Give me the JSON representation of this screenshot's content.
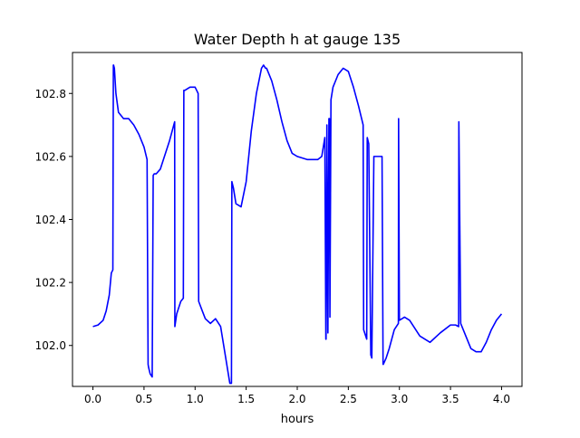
{
  "chart_data": {
    "type": "line",
    "title": "Water Depth h at gauge 135",
    "xlabel": "hours",
    "ylabel": "",
    "xlim": [
      -0.2,
      4.2
    ],
    "ylim": [
      101.87,
      102.93
    ],
    "x_ticks": [
      0.0,
      0.5,
      1.0,
      1.5,
      2.0,
      2.5,
      3.0,
      3.5,
      4.0
    ],
    "x_tick_labels": [
      "0.0",
      "0.5",
      "1.0",
      "1.5",
      "2.0",
      "2.5",
      "3.0",
      "3.5",
      "4.0"
    ],
    "y_ticks": [
      102.0,
      102.2,
      102.4,
      102.6,
      102.8
    ],
    "y_tick_labels": [
      "102.0",
      "102.2",
      "102.4",
      "102.6",
      "102.8"
    ],
    "grid": false,
    "legend": "none",
    "line_color": "#0000ff",
    "series": [
      {
        "x": [
          0.0,
          0.05,
          0.1,
          0.13,
          0.16,
          0.18,
          0.195,
          0.2,
          0.202,
          0.21,
          0.225,
          0.25,
          0.3,
          0.35,
          0.4,
          0.45,
          0.5,
          0.53,
          0.54,
          0.545,
          0.56,
          0.58,
          0.59,
          0.6,
          0.62,
          0.66,
          0.7,
          0.75,
          0.8,
          0.802,
          0.82,
          0.86,
          0.885,
          0.89,
          0.9,
          0.95,
          1.0,
          1.03,
          1.035,
          1.07,
          1.1,
          1.15,
          1.2,
          1.25,
          1.3,
          1.34,
          1.356,
          1.36,
          1.375,
          1.4,
          1.45,
          1.5,
          1.55,
          1.6,
          1.65,
          1.67,
          1.69,
          1.7,
          1.75,
          1.8,
          1.85,
          1.9,
          1.95,
          2.0,
          2.1,
          2.2,
          2.24,
          2.27,
          2.28,
          2.282,
          2.29,
          2.3,
          2.31,
          2.315,
          2.32,
          2.33,
          2.35,
          2.4,
          2.45,
          2.5,
          2.55,
          2.6,
          2.645,
          2.65,
          2.68,
          2.685,
          2.7,
          2.72,
          2.73,
          2.75,
          2.8,
          2.83,
          2.84,
          2.842,
          2.87,
          2.9,
          2.95,
          2.99,
          2.992,
          3.0,
          3.05,
          3.1,
          3.2,
          3.3,
          3.4,
          3.5,
          3.55,
          3.58,
          3.582,
          3.6,
          3.65,
          3.7,
          3.75,
          3.8,
          3.85,
          3.9,
          3.95,
          4.0
        ],
        "y": [
          102.06,
          102.065,
          102.08,
          102.11,
          102.16,
          102.23,
          102.24,
          102.89,
          102.89,
          102.88,
          102.8,
          102.74,
          102.72,
          102.72,
          102.7,
          102.67,
          102.63,
          102.59,
          101.94,
          101.93,
          101.91,
          101.9,
          102.54,
          102.545,
          102.545,
          102.56,
          102.6,
          102.65,
          102.71,
          102.06,
          102.1,
          102.14,
          102.15,
          102.81,
          102.81,
          102.82,
          102.82,
          102.8,
          102.14,
          102.11,
          102.085,
          102.07,
          102.085,
          102.06,
          101.96,
          101.88,
          101.88,
          102.52,
          102.5,
          102.45,
          102.44,
          102.52,
          102.68,
          102.8,
          102.88,
          102.89,
          102.88,
          102.88,
          102.84,
          102.78,
          102.71,
          102.65,
          102.61,
          102.6,
          102.59,
          102.59,
          102.6,
          102.66,
          102.02,
          102.02,
          102.7,
          102.04,
          102.72,
          102.72,
          102.09,
          102.78,
          102.82,
          102.86,
          102.88,
          102.87,
          102.82,
          102.76,
          102.7,
          102.05,
          102.02,
          102.66,
          102.64,
          101.97,
          101.96,
          102.6,
          102.6,
          102.6,
          101.94,
          101.94,
          101.96,
          101.99,
          102.05,
          102.07,
          102.72,
          102.08,
          102.09,
          102.08,
          102.03,
          102.01,
          102.04,
          102.065,
          102.065,
          102.06,
          102.71,
          102.07,
          102.03,
          101.99,
          101.98,
          101.98,
          102.01,
          102.05,
          102.08,
          102.1
        ]
      }
    ]
  }
}
